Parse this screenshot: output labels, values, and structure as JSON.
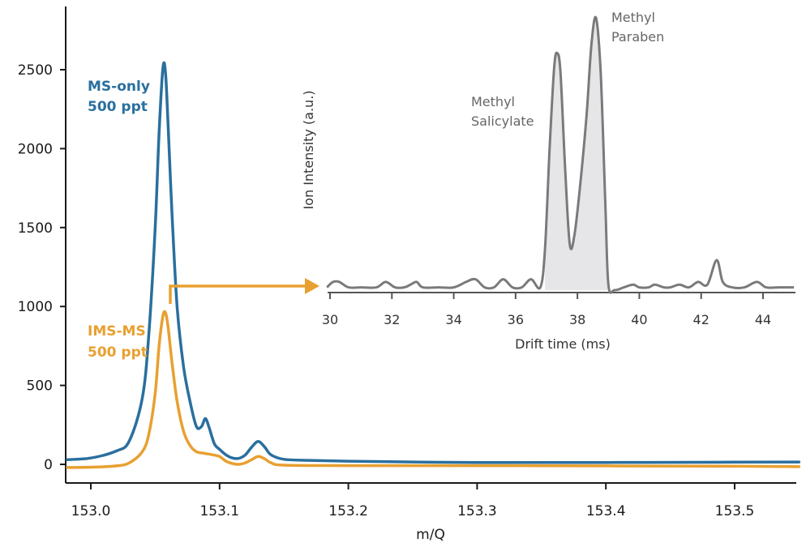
{
  "chart_data": [
    {
      "type": "line",
      "title": "",
      "xlabel": "m/Q",
      "ylabel": "",
      "xlim": [
        152.975,
        153.55
      ],
      "ylim": [
        -70,
        2900
      ],
      "x_ticks": [
        153.0,
        153.1,
        153.2,
        153.3,
        153.4,
        153.5
      ],
      "x_tick_labels": [
        "153.0",
        "153.1",
        "153.2",
        "153.3",
        "153.4",
        "153.5"
      ],
      "y_ticks": [
        0,
        500,
        1000,
        1500,
        2000,
        2500
      ],
      "y_tick_labels": [
        "0",
        "500",
        "1000",
        "1500",
        "2000",
        "2500"
      ],
      "grid": false,
      "legend": "inline labels",
      "series": [
        {
          "name": "MS-only 500 ppt",
          "label_lines": [
            "MS-only",
            "500 ppt"
          ],
          "color": "#2a6f9e",
          "x": [
            152.975,
            153.0,
            153.02,
            153.03,
            153.04,
            153.045,
            153.05,
            153.053,
            153.056,
            153.058,
            153.06,
            153.063,
            153.067,
            153.072,
            153.077,
            153.082,
            153.086,
            153.089,
            153.092,
            153.096,
            153.1,
            153.105,
            153.11,
            153.115,
            153.12,
            153.125,
            153.13,
            153.135,
            153.14,
            153.15,
            153.17,
            153.2,
            153.25,
            153.3,
            153.4,
            153.5,
            153.55
          ],
          "y": [
            30,
            40,
            85,
            150,
            420,
            820,
            1500,
            2100,
            2510,
            2480,
            2150,
            1600,
            1000,
            620,
            400,
            240,
            240,
            290,
            230,
            130,
            95,
            60,
            40,
            38,
            60,
            110,
            145,
            110,
            60,
            32,
            25,
            20,
            15,
            12,
            12,
            14,
            15
          ]
        },
        {
          "name": "IMS-MS 500 ppt",
          "label_lines": [
            "IMS-MS",
            "500 ppt"
          ],
          "color": "#e8a030",
          "x": [
            152.975,
            153.0,
            153.02,
            153.03,
            153.04,
            153.045,
            153.05,
            153.053,
            153.056,
            153.058,
            153.06,
            153.063,
            153.067,
            153.072,
            153.077,
            153.082,
            153.088,
            153.095,
            153.1,
            153.105,
            153.11,
            153.115,
            153.12,
            153.125,
            153.13,
            153.135,
            153.14,
            153.15,
            153.2,
            153.3,
            153.4,
            153.5,
            153.55
          ],
          "y": [
            -20,
            -18,
            -10,
            10,
            80,
            190,
            450,
            750,
            940,
            960,
            870,
            650,
            400,
            210,
            120,
            80,
            70,
            60,
            50,
            20,
            5,
            0,
            10,
            30,
            50,
            35,
            10,
            -5,
            -8,
            -8,
            -10,
            -12,
            -15
          ]
        }
      ],
      "annotations": {
        "arrow": "IMS-MS peak to drift time inset"
      }
    },
    {
      "type": "area",
      "title": "",
      "xlabel": "Drift time (ms)",
      "ylabel": "Ion Intensity (a.u.)",
      "xlim": [
        29.9,
        45.0
      ],
      "ylim": [
        0,
        100
      ],
      "x_ticks": [
        30,
        32,
        34,
        36,
        38,
        40,
        42,
        44
      ],
      "x_tick_labels": [
        "30",
        "32",
        "34",
        "36",
        "38",
        "40",
        "42",
        "44"
      ],
      "grid": false,
      "series": [
        {
          "name": "",
          "color": "#7a7a7a",
          "x": [
            29.9,
            30.1,
            30.3,
            30.6,
            31.0,
            31.5,
            31.8,
            32.1,
            32.4,
            32.6,
            32.8,
            33.0,
            33.5,
            34.0,
            34.4,
            34.7,
            35.0,
            35.3,
            35.6,
            35.9,
            36.2,
            36.5,
            36.8,
            36.95,
            37.1,
            37.25,
            37.35,
            37.45,
            37.6,
            37.75,
            37.9,
            38.1,
            38.3,
            38.45,
            38.6,
            38.75,
            38.9,
            39.0,
            39.2,
            39.5,
            39.8,
            40.0,
            40.3,
            40.5,
            40.8,
            41.0,
            41.3,
            41.6,
            41.9,
            42.2,
            42.5,
            42.7,
            43.0,
            43.4,
            43.8,
            44.1,
            44.5,
            45.0
          ],
          "y": [
            1,
            3,
            3,
            1,
            1,
            1,
            3,
            1,
            1,
            2,
            3,
            1,
            1,
            1,
            3,
            4,
            1,
            1,
            4,
            1,
            1,
            4,
            1,
            15,
            52,
            82,
            87,
            80,
            45,
            17,
            20,
            40,
            65,
            90,
            100,
            80,
            32,
            2,
            0,
            1,
            2,
            1,
            1,
            2,
            1,
            1,
            2,
            1,
            3,
            2,
            11,
            3,
            1,
            1,
            3,
            1,
            1,
            1
          ]
        }
      ],
      "annotations": [
        {
          "lines": [
            "Methyl",
            "Paraben"
          ]
        },
        {
          "lines": [
            "Methyl",
            "Salicylate"
          ]
        }
      ]
    }
  ]
}
